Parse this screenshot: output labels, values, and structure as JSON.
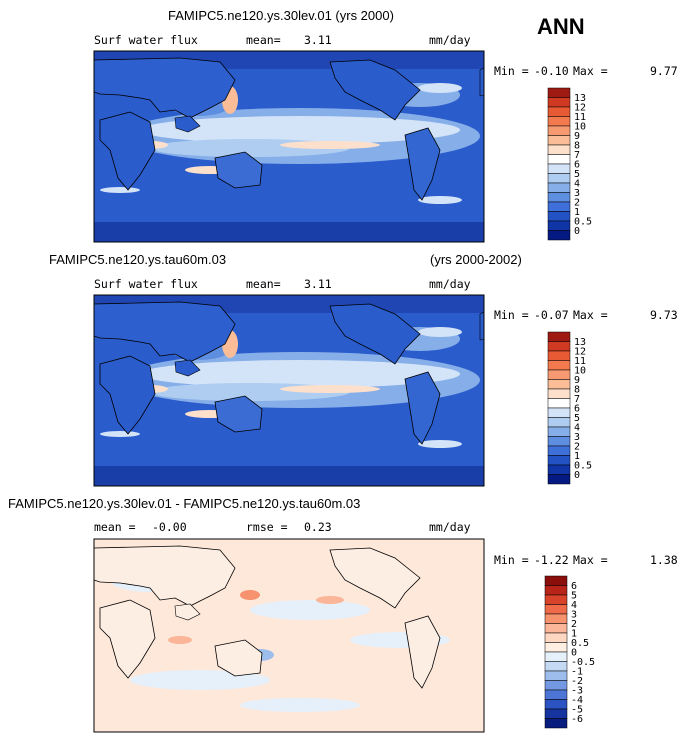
{
  "season": "ANN",
  "panels": [
    {
      "title": "FAMIPC5.ne120.ys.30lev.01 (yrs 2000)",
      "title_right": "",
      "field": "Surf water flux",
      "stat1_label": "mean=",
      "stat1_value": "3.11",
      "stat2_label": "",
      "stat2_value": "",
      "units": "mm/day",
      "min_label": "Min =",
      "min_value": "-0.10",
      "max_label": "Max =",
      "max_value": "9.77"
    },
    {
      "title": "FAMIPC5.ne120.ys.tau60m.03",
      "title_right": "(yrs 2000-2002)",
      "field": "Surf water flux",
      "stat1_label": "mean=",
      "stat1_value": "3.11",
      "stat2_label": "",
      "stat2_value": "",
      "units": "mm/day",
      "min_label": "Min =",
      "min_value": "-0.07",
      "max_label": "Max =",
      "max_value": "9.73"
    },
    {
      "title": "FAMIPC5.ne120.ys.30lev.01 - FAMIPC5.ne120.ys.tau60m.03",
      "title_right": "",
      "field": "",
      "stat1_label": "mean =",
      "stat1_value": "-0.00",
      "stat2_label": "rmse =",
      "stat2_value": "0.23",
      "units": "mm/day",
      "min_label": "Min =",
      "min_value": "-1.22",
      "max_label": "Max =",
      "max_value": "1.38"
    }
  ],
  "colorbars": {
    "absolute": {
      "levels": [
        "13",
        "12",
        "11",
        "10",
        "9",
        "8",
        "7",
        "6",
        "5",
        "4",
        "3",
        "2",
        "1",
        "0.5",
        "0"
      ],
      "colors": [
        "#9e1a12",
        "#d03a22",
        "#e85a34",
        "#f27a4e",
        "#f79a72",
        "#fbbd98",
        "#fde0cc",
        "#ffffff",
        "#d4e4f8",
        "#aecdf1",
        "#86aee8",
        "#5e8ee0",
        "#3f6fd8",
        "#2252c4",
        "#0f35a6",
        "#041a82"
      ]
    },
    "difference": {
      "levels": [
        "6",
        "5",
        "4",
        "3",
        "2",
        "1",
        "0.5",
        "0",
        "-0.5",
        "-1",
        "-2",
        "-3",
        "-4",
        "-5",
        "-6"
      ],
      "colors": [
        "#8a0e0a",
        "#b82418",
        "#d9432a",
        "#ee6a48",
        "#f7926e",
        "#fbb598",
        "#fed7c2",
        "#ffeee2",
        "#e6f0fb",
        "#c4d9f4",
        "#9dbdec",
        "#7399e2",
        "#4c75d6",
        "#2c53c2",
        "#16349f",
        "#071c7c"
      ]
    }
  }
}
